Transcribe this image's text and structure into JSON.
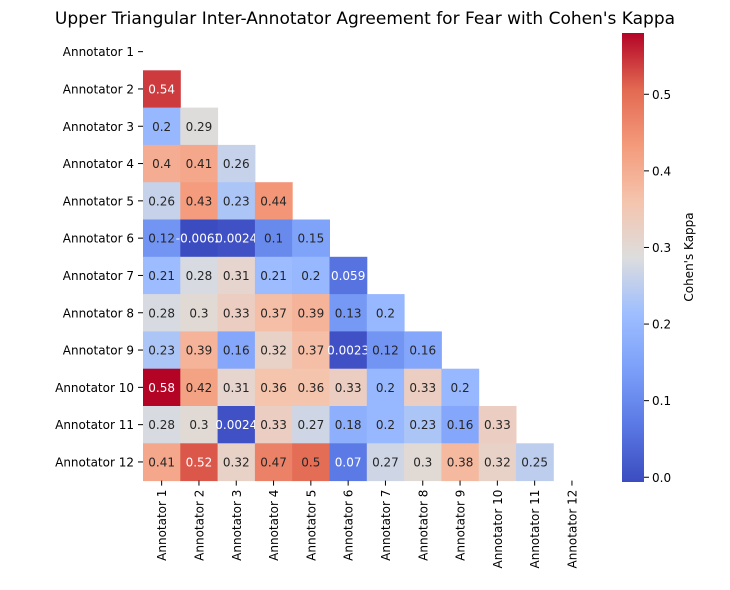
{
  "chart_data": {
    "type": "heatmap",
    "title": "Upper Triangular Inter-Annotator Agreement for Fear with Cohen's Kappa",
    "row_labels": [
      "Annotator 1",
      "Annotator 2",
      "Annotator 3",
      "Annotator 4",
      "Annotator 5",
      "Annotator 6",
      "Annotator 7",
      "Annotator 8",
      "Annotator 9",
      "Annotator 10",
      "Annotator 11",
      "Annotator 12"
    ],
    "col_labels": [
      "Annotator 1",
      "Annotator 2",
      "Annotator 3",
      "Annotator 4",
      "Annotator 5",
      "Annotator 6",
      "Annotator 7",
      "Annotator 8",
      "Annotator 9",
      "Annotator 10",
      "Annotator 11",
      "Annotator 12"
    ],
    "values": [
      [],
      [
        0.54
      ],
      [
        0.2,
        0.29
      ],
      [
        0.4,
        0.41,
        0.26
      ],
      [
        0.26,
        0.43,
        0.23,
        0.44
      ],
      [
        0.12,
        -0.0062,
        0.0024,
        0.1,
        0.15
      ],
      [
        0.21,
        0.28,
        0.31,
        0.21,
        0.2,
        0.059
      ],
      [
        0.28,
        0.3,
        0.33,
        0.37,
        0.39,
        0.13,
        0.2
      ],
      [
        0.23,
        0.39,
        0.16,
        0.32,
        0.37,
        0.0023,
        0.12,
        0.16
      ],
      [
        0.58,
        0.42,
        0.31,
        0.36,
        0.36,
        0.33,
        0.2,
        0.33,
        0.2
      ],
      [
        0.28,
        0.3,
        0.0024,
        0.33,
        0.27,
        0.18,
        0.2,
        0.23,
        0.16,
        0.33
      ],
      [
        0.41,
        0.52,
        0.32,
        0.47,
        0.5,
        0.07,
        0.27,
        0.3,
        0.38,
        0.32,
        0.25
      ]
    ],
    "cell_labels": [
      [],
      [
        "0.54"
      ],
      [
        "0.2",
        "0.29"
      ],
      [
        "0.4",
        "0.41",
        "0.26"
      ],
      [
        "0.26",
        "0.43",
        "0.23",
        "0.44"
      ],
      [
        "0.12",
        "-0.0062",
        "0.0024",
        "0.1",
        "0.15"
      ],
      [
        "0.21",
        "0.28",
        "0.31",
        "0.21",
        "0.2",
        "0.059"
      ],
      [
        "0.28",
        "0.3",
        "0.33",
        "0.37",
        "0.39",
        "0.13",
        "0.2"
      ],
      [
        "0.23",
        "0.39",
        "0.16",
        "0.32",
        "0.37",
        "0.0023",
        "0.12",
        "0.16"
      ],
      [
        "0.58",
        "0.42",
        "0.31",
        "0.36",
        "0.36",
        "0.33",
        "0.2",
        "0.33",
        "0.2"
      ],
      [
        "0.28",
        "0.3",
        "0.0024",
        "0.33",
        "0.27",
        "0.18",
        "0.2",
        "0.23",
        "0.16",
        "0.33"
      ],
      [
        "0.41",
        "0.52",
        "0.32",
        "0.47",
        "0.5",
        "0.07",
        "0.27",
        "0.3",
        "0.38",
        "0.32",
        "0.25"
      ]
    ],
    "colormap": "coolwarm",
    "vmin": -0.0062,
    "vmax": 0.58,
    "colorbar": {
      "label": "Cohen's Kappa",
      "ticks": [
        0.0,
        0.1,
        0.2,
        0.3,
        0.4,
        0.5
      ],
      "tick_labels": [
        "0.0",
        "0.1",
        "0.2",
        "0.3",
        "0.4",
        "0.5"
      ]
    }
  }
}
